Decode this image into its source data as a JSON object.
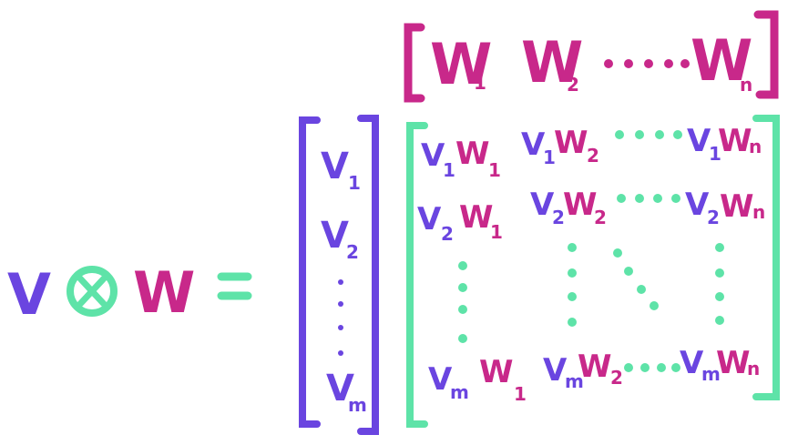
{
  "colors": {
    "v": "#6a45e0",
    "w": "#c8288a",
    "green": "#5ee3a8"
  },
  "lhs": {
    "v": "V",
    "tensor": "⊗",
    "w": "W",
    "equals": "="
  },
  "row_vector": {
    "w1": "W",
    "w1_sub": "1",
    "w2": "W",
    "w2_sub": "2",
    "dots": "····",
    "wn": "W",
    "wn_sub": "n"
  },
  "col_vector": {
    "v1": "V",
    "v1_sub": "1",
    "v2": "V",
    "v2_sub": "2",
    "vm": "V",
    "vm_sub": "m"
  },
  "matrix": {
    "r1": {
      "a_v": "V",
      "a_vs": "1",
      "a_w": "W",
      "a_ws": "1",
      "b_v": "V",
      "b_vs": "1",
      "b_w": "W",
      "b_ws": "2",
      "c_v": "V",
      "c_vs": "1",
      "c_w": "W",
      "c_ws": "n"
    },
    "r2": {
      "a_v": "V",
      "a_vs": "2",
      "a_w": "W",
      "a_ws": "1",
      "b_v": "V",
      "b_vs": "2",
      "b_w": "W",
      "b_ws": "2",
      "c_v": "V",
      "c_vs": "2",
      "c_w": "W",
      "c_ws": "n"
    },
    "r3": {
      "a_v": "V",
      "a_vs": "m",
      "a_w": "W",
      "a_ws": "1",
      "b_v": "V",
      "b_vs": "m",
      "b_w": "W",
      "b_ws": "2",
      "c_v": "V",
      "c_vs": "m",
      "c_w": "W",
      "c_ws": "n"
    }
  }
}
